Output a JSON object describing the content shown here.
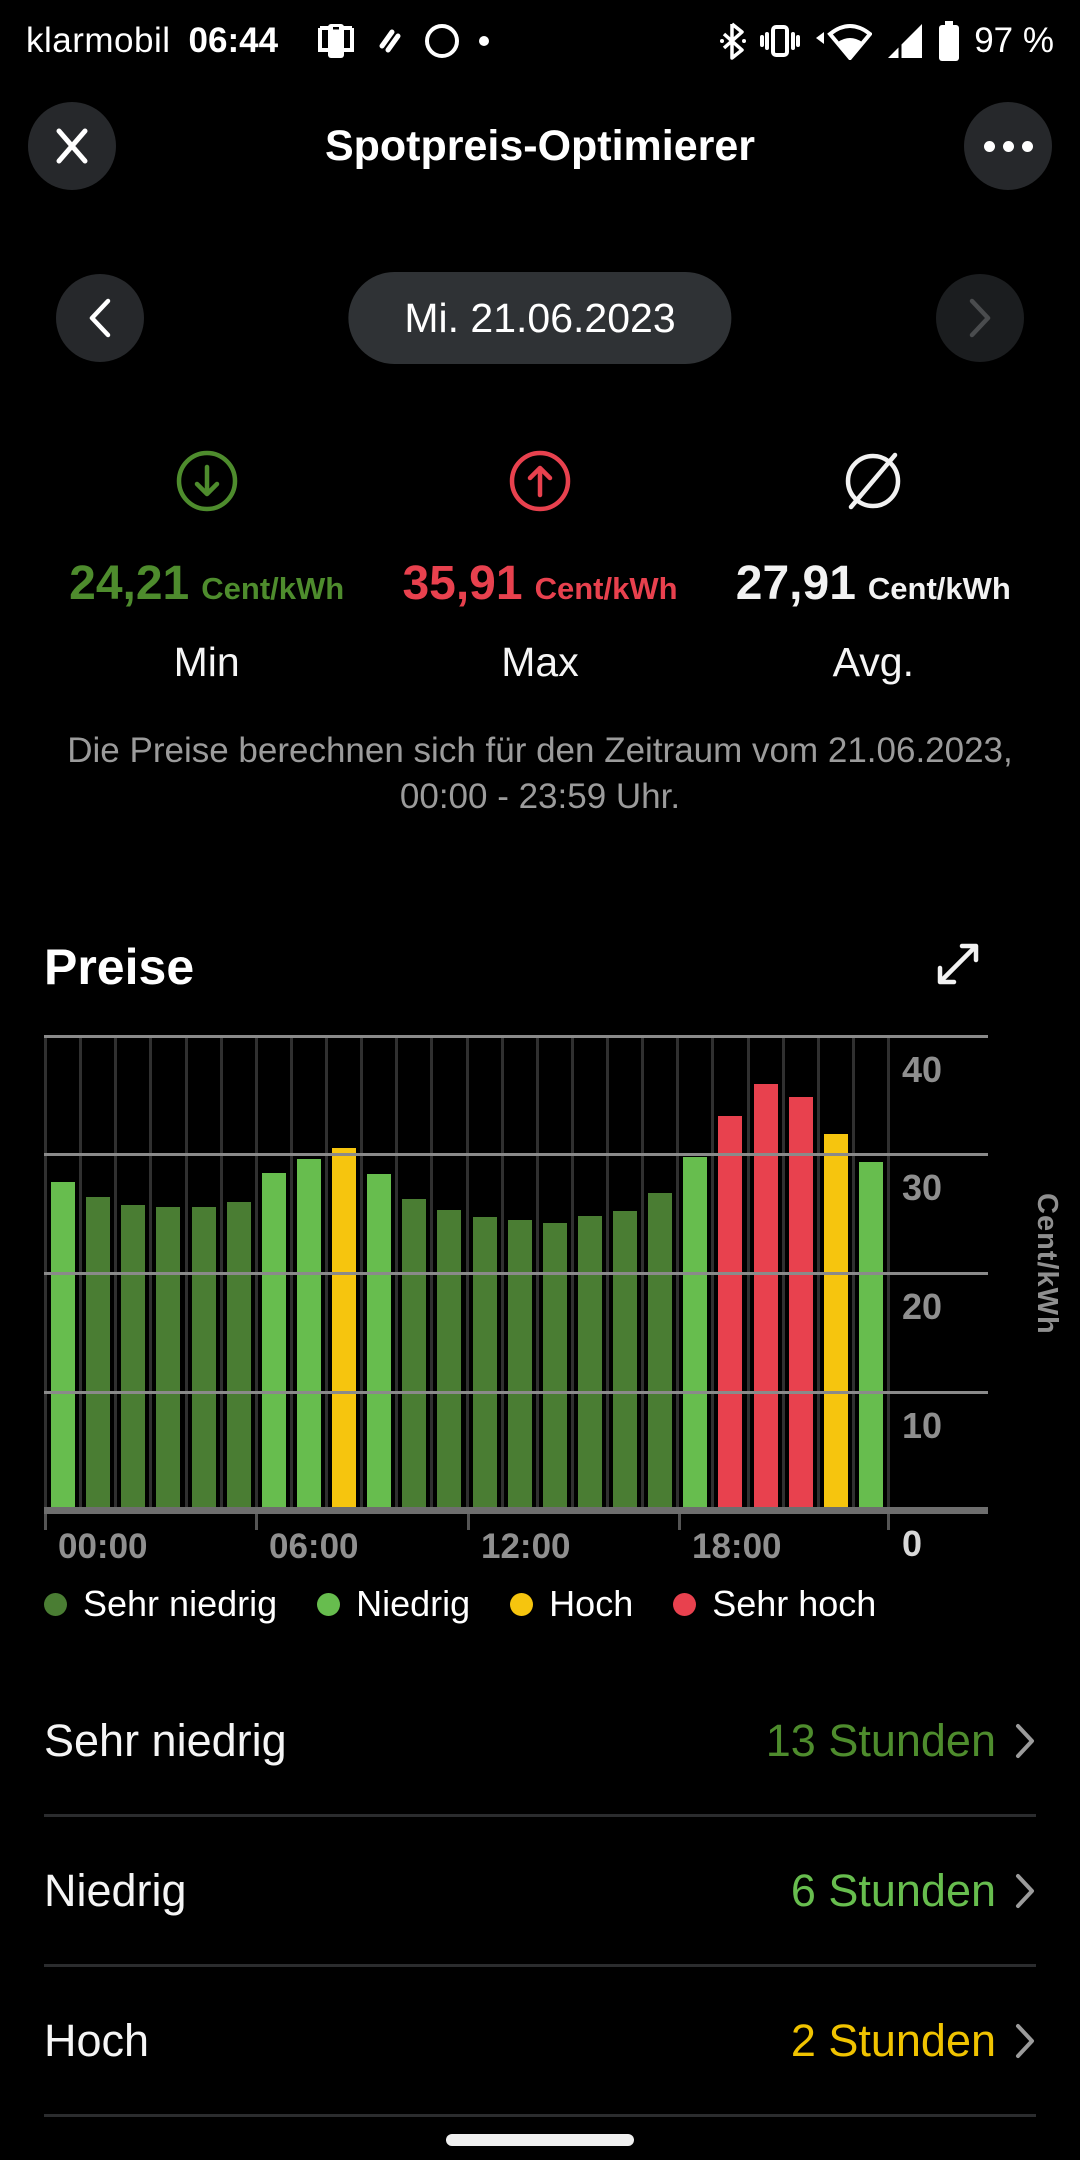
{
  "status_bar": {
    "carrier": "klarmobil",
    "time": "06:44",
    "battery": "97 %",
    "left_icons": [
      "screen-share-icon",
      "volte-icon",
      "data-saver-icon",
      "notification-dot"
    ],
    "right_icons": [
      "bluetooth-icon",
      "vibrate-icon",
      "wifi-icon",
      "cellular-icon",
      "battery-icon"
    ]
  },
  "header": {
    "title": "Spotpreis-Optimierer"
  },
  "date_nav": {
    "date": "Mi. 21.06.2023"
  },
  "stats": [
    {
      "value": "24,21",
      "unit": "Cent/kWh",
      "label": "Min",
      "color": "#4e8c2d",
      "icon": "arrow-down-circle-icon",
      "icon_color": "#4e8c2d"
    },
    {
      "value": "35,91",
      "unit": "Cent/kWh",
      "label": "Max",
      "color": "#e8414e",
      "icon": "arrow-up-circle-icon",
      "icon_color": "#e8414e"
    },
    {
      "value": "27,91",
      "unit": "Cent/kWh",
      "label": "Avg.",
      "color": "#f2f2f2",
      "icon": "average-slash-circle-icon",
      "icon_color": "#f2f2f2"
    }
  ],
  "notice": "Die Preise berechnen sich für den Zeitraum vom 21.06.2023, 00:00 - 23:59 Uhr.",
  "chart_section": {
    "title": "Preise"
  },
  "chart_data": {
    "type": "bar",
    "title": "Preise",
    "ylabel": "Cent/kWh",
    "ylim": [
      0,
      40
    ],
    "yticks": [
      40,
      30,
      20,
      10,
      0
    ],
    "xticks": [
      "00:00",
      "06:00",
      "12:00",
      "18:00"
    ],
    "grid": true,
    "legend_position": "bottom",
    "hours": [
      "00",
      "01",
      "02",
      "03",
      "04",
      "05",
      "06",
      "07",
      "08",
      "09",
      "10",
      "11",
      "12",
      "13",
      "14",
      "15",
      "16",
      "17",
      "18",
      "19",
      "20",
      "21",
      "22",
      "23"
    ],
    "values": [
      27.6,
      26.4,
      25.7,
      25.5,
      25.5,
      25.9,
      28.4,
      29.6,
      30.5,
      28.3,
      26.2,
      25.3,
      24.7,
      24.4,
      24.21,
      24.8,
      25.2,
      26.7,
      29.7,
      33.2,
      35.91,
      34.8,
      31.7,
      29.3
    ],
    "levels": [
      "niedrig",
      "sehr_niedrig",
      "sehr_niedrig",
      "sehr_niedrig",
      "sehr_niedrig",
      "sehr_niedrig",
      "niedrig",
      "niedrig",
      "hoch",
      "niedrig",
      "sehr_niedrig",
      "sehr_niedrig",
      "sehr_niedrig",
      "sehr_niedrig",
      "sehr_niedrig",
      "sehr_niedrig",
      "sehr_niedrig",
      "sehr_niedrig",
      "niedrig",
      "sehr_hoch",
      "sehr_hoch",
      "sehr_hoch",
      "hoch",
      "niedrig"
    ],
    "level_colors": {
      "sehr_niedrig": "#4a7d33",
      "niedrig": "#67bd4e",
      "hoch": "#f6c50e",
      "sehr_hoch": "#e8414e"
    }
  },
  "legend": {
    "items": [
      {
        "label": "Sehr niedrig",
        "color": "#4a7d33"
      },
      {
        "label": "Niedrig",
        "color": "#67bd4e"
      },
      {
        "label": "Hoch",
        "color": "#f6c50e"
      },
      {
        "label": "Sehr hoch",
        "color": "#e8414e"
      }
    ]
  },
  "rows": [
    {
      "label": "Sehr niedrig",
      "value": "13 Stunden",
      "color": "#4e8c2d"
    },
    {
      "label": "Niedrig",
      "value": "6 Stunden",
      "color": "#67bd4e"
    },
    {
      "label": "Hoch",
      "value": "2 Stunden",
      "color": "#f0c300"
    }
  ]
}
